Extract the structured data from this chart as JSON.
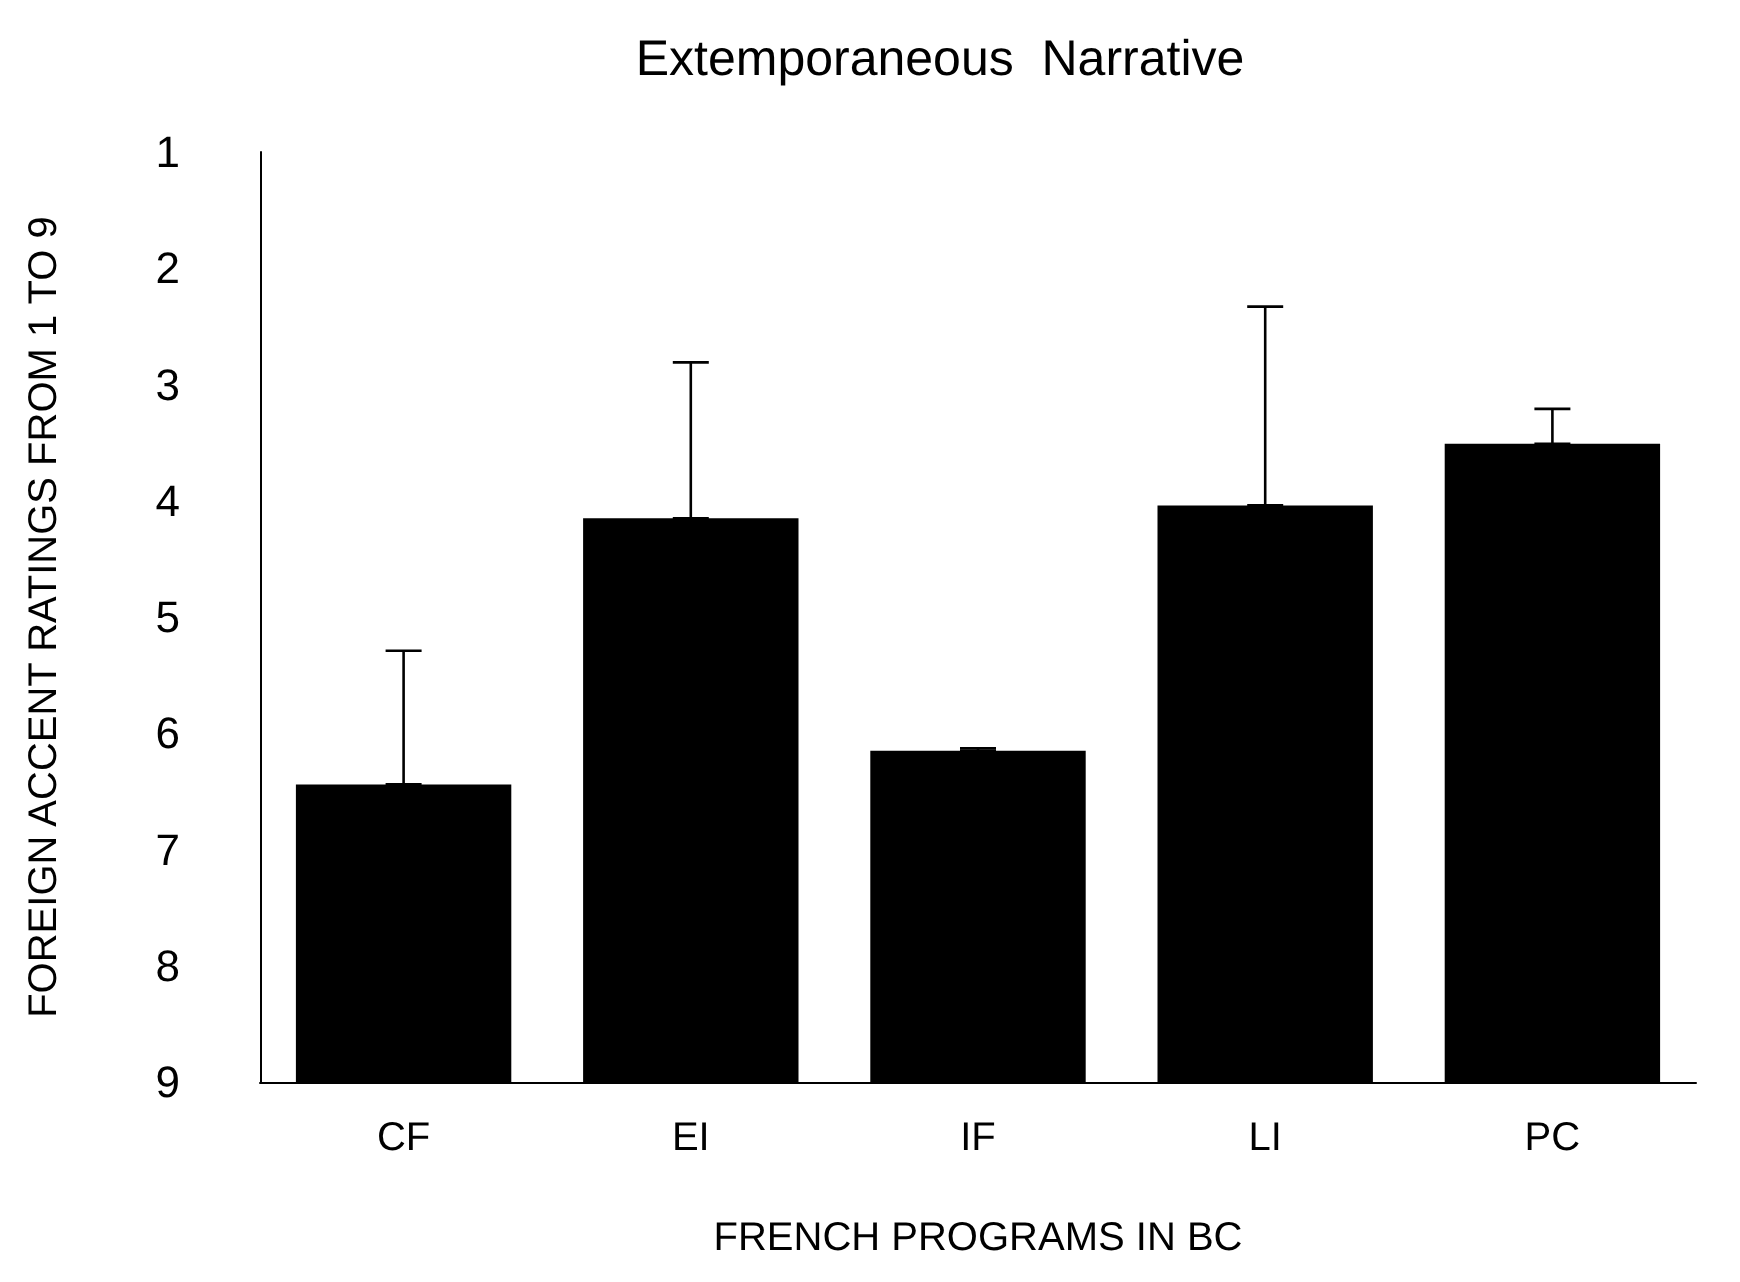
{
  "chart_data": {
    "type": "bar",
    "title": "Extemporaneous  Narrative",
    "xlabel": "FRENCH PROGRAMS IN BC",
    "ylabel": "FOREIGN ACCENT RATINGS FROM 1 TO 9",
    "categories": [
      "CF",
      "EI",
      "IF",
      "LI",
      "PC"
    ],
    "values": [
      -2.56,
      -4.85,
      -2.85,
      -4.96,
      -5.49
    ],
    "base": [
      9,
      9,
      9,
      9,
      9
    ],
    "errors": [
      [
        5.29,
        6.44
      ],
      [
        2.81,
        4.15
      ],
      [
        6.13,
        6.15
      ],
      [
        2.33,
        4.04
      ],
      [
        3.21,
        3.51
      ]
    ],
    "color": "#000000",
    "ylim": [
      9,
      1
    ],
    "yticks": [
      1,
      2,
      3,
      4,
      5,
      6,
      7,
      8,
      9
    ],
    "grid": false
  }
}
